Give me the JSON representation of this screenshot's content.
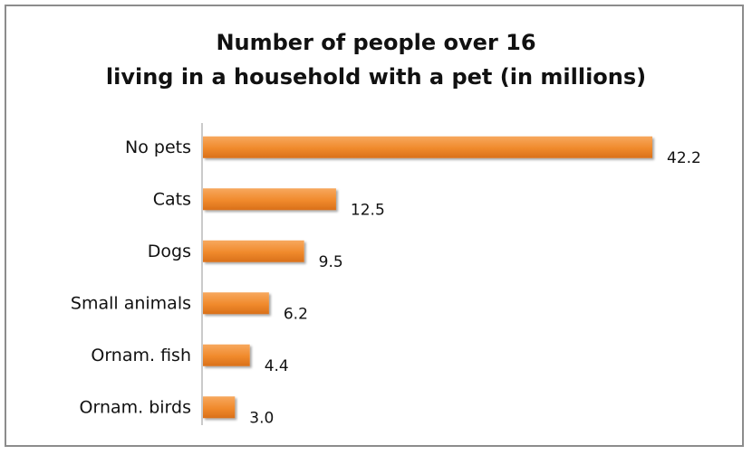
{
  "chart_data": {
    "type": "bar",
    "orientation": "horizontal",
    "title": [
      "Number of people over 16",
      "living in a household with a pet (in millions)"
    ],
    "categories": [
      "No pets",
      "Cats",
      "Dogs",
      "Small animals",
      "Ornam. fish",
      "Ornam. birds"
    ],
    "values": [
      42.2,
      12.5,
      9.5,
      6.2,
      4.4,
      3.0
    ],
    "value_labels": [
      "42.2",
      "12.5",
      "9.5",
      "6.2",
      "4.4",
      "3.0"
    ],
    "xlim": [
      0,
      42.2
    ],
    "grid": false,
    "legend": "none",
    "bar_color": "#F08A2C"
  }
}
